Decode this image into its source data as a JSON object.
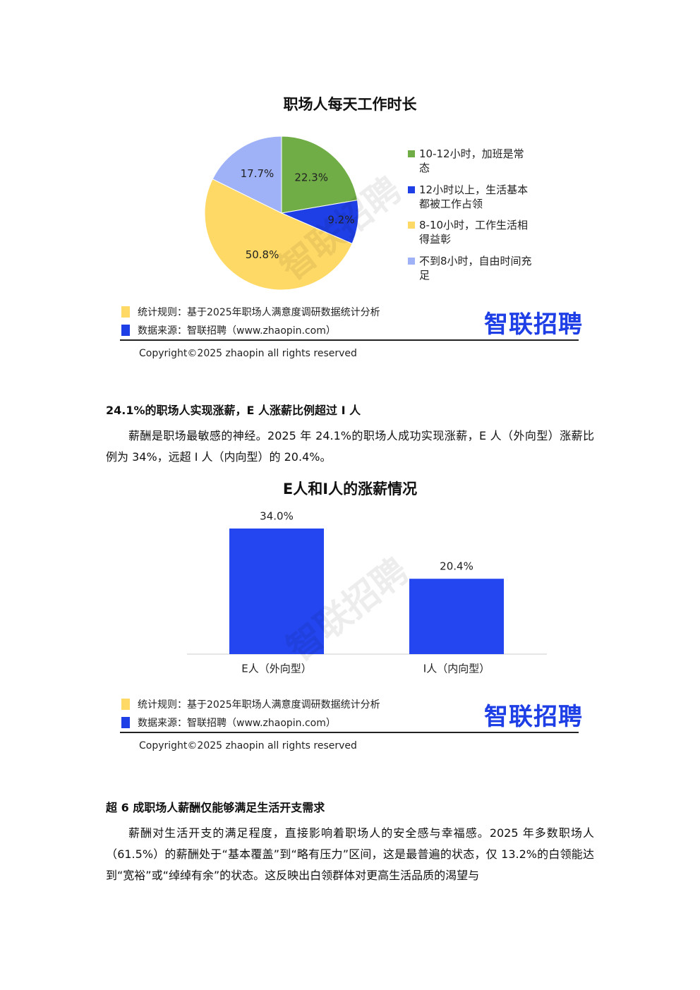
{
  "chart_data": [
    {
      "type": "pie",
      "title": "职场人每天工作时长",
      "categories": [
        "10-12小时，加班是常态",
        "12小时以上，生活基本都被工作占领",
        "8-10小时，工作生活相得益彰",
        "不到8小时，自由时间充足"
      ],
      "values": [
        22.3,
        9.2,
        50.8,
        17.7
      ],
      "value_labels": [
        "22.3%",
        "9.2%",
        "50.8%",
        "17.7%"
      ],
      "colors": [
        "#70ad47",
        "#1f3fe6",
        "#ffd966",
        "#9fb1f7"
      ],
      "watermark": "智联招聘",
      "footer": {
        "rule": "统计规则：基于2025年职场人满意度调研数据统计分析",
        "source": "数据来源：智联招聘（www.zhaopin.com）",
        "copyright": "Copyright©2025 zhaopin all rights reserved",
        "logo": "智联招聘"
      }
    },
    {
      "type": "bar",
      "title": "E人和I人的涨薪情况",
      "categories": [
        "E人（外向型）",
        "I人（内向型）"
      ],
      "values": [
        34.0,
        20.4
      ],
      "value_labels": [
        "34.0%",
        "20.4%"
      ],
      "color": "#2446f0",
      "watermark": "智联招聘",
      "footer": {
        "rule": "统计规则：基于2025年职场人满意度调研数据统计分析",
        "source": "数据来源：智联招聘（www.zhaopin.com）",
        "copyright": "Copyright©2025 zhaopin all rights reserved",
        "logo": "智联招聘"
      }
    }
  ],
  "document": {
    "heading1": "24.1%的职场人实现涨薪，E 人涨薪比例超过 I 人",
    "paragraph1": "薪酬是职场最敏感的神经。2025 年 24.1%的职场人成功实现涨薪，E 人（外向型）涨薪比例为 34%，远超 I 人（内向型）的 20.4%。",
    "heading2": "超 6 成职场人薪酬仅能够满足生活开支需求",
    "paragraph2": "薪酬对生活开支的满足程度，直接影响着职场人的安全感与幸福感。2025 年多数职场人（61.5%）的薪酬处于“基本覆盖”到“略有压力”区间，这是最普遍的状态，仅 13.2%的白领能达到“宽裕”或“绰绰有余”的状态。这反映出白领群体对更高生活品质的渴望与"
  }
}
